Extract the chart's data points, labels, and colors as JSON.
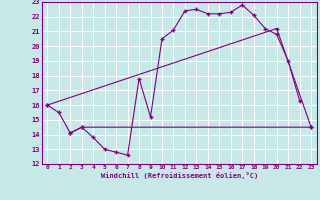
{
  "xlabel": "Windchill (Refroidissement éolien,°C)",
  "bg_color": "#c8e8e8",
  "grid_color": "#ffffff",
  "line_color": "#800080",
  "xlim": [
    -0.5,
    23.5
  ],
  "ylim": [
    12,
    23
  ],
  "xticks": [
    0,
    1,
    2,
    3,
    4,
    5,
    6,
    7,
    8,
    9,
    10,
    11,
    12,
    13,
    14,
    15,
    16,
    17,
    18,
    19,
    20,
    21,
    22,
    23
  ],
  "yticks": [
    12,
    13,
    14,
    15,
    16,
    17,
    18,
    19,
    20,
    21,
    22,
    23
  ],
  "line1_x": [
    0,
    1,
    2,
    3,
    4,
    5,
    6,
    7,
    8,
    9,
    10,
    11,
    12,
    13,
    14,
    15,
    16,
    17,
    18,
    19,
    20,
    21,
    22
  ],
  "line1_y": [
    16.0,
    15.5,
    14.1,
    14.5,
    13.8,
    13.0,
    12.8,
    12.6,
    17.8,
    15.2,
    20.5,
    21.1,
    22.4,
    22.5,
    22.2,
    22.2,
    22.3,
    22.8,
    22.1,
    21.2,
    20.8,
    19.0,
    16.3
  ],
  "line2_x": [
    2,
    3,
    23
  ],
  "line2_y": [
    14.1,
    14.5,
    14.5
  ],
  "line3_x": [
    0,
    20,
    23
  ],
  "line3_y": [
    16.0,
    21.2,
    14.5
  ],
  "marker": "+"
}
